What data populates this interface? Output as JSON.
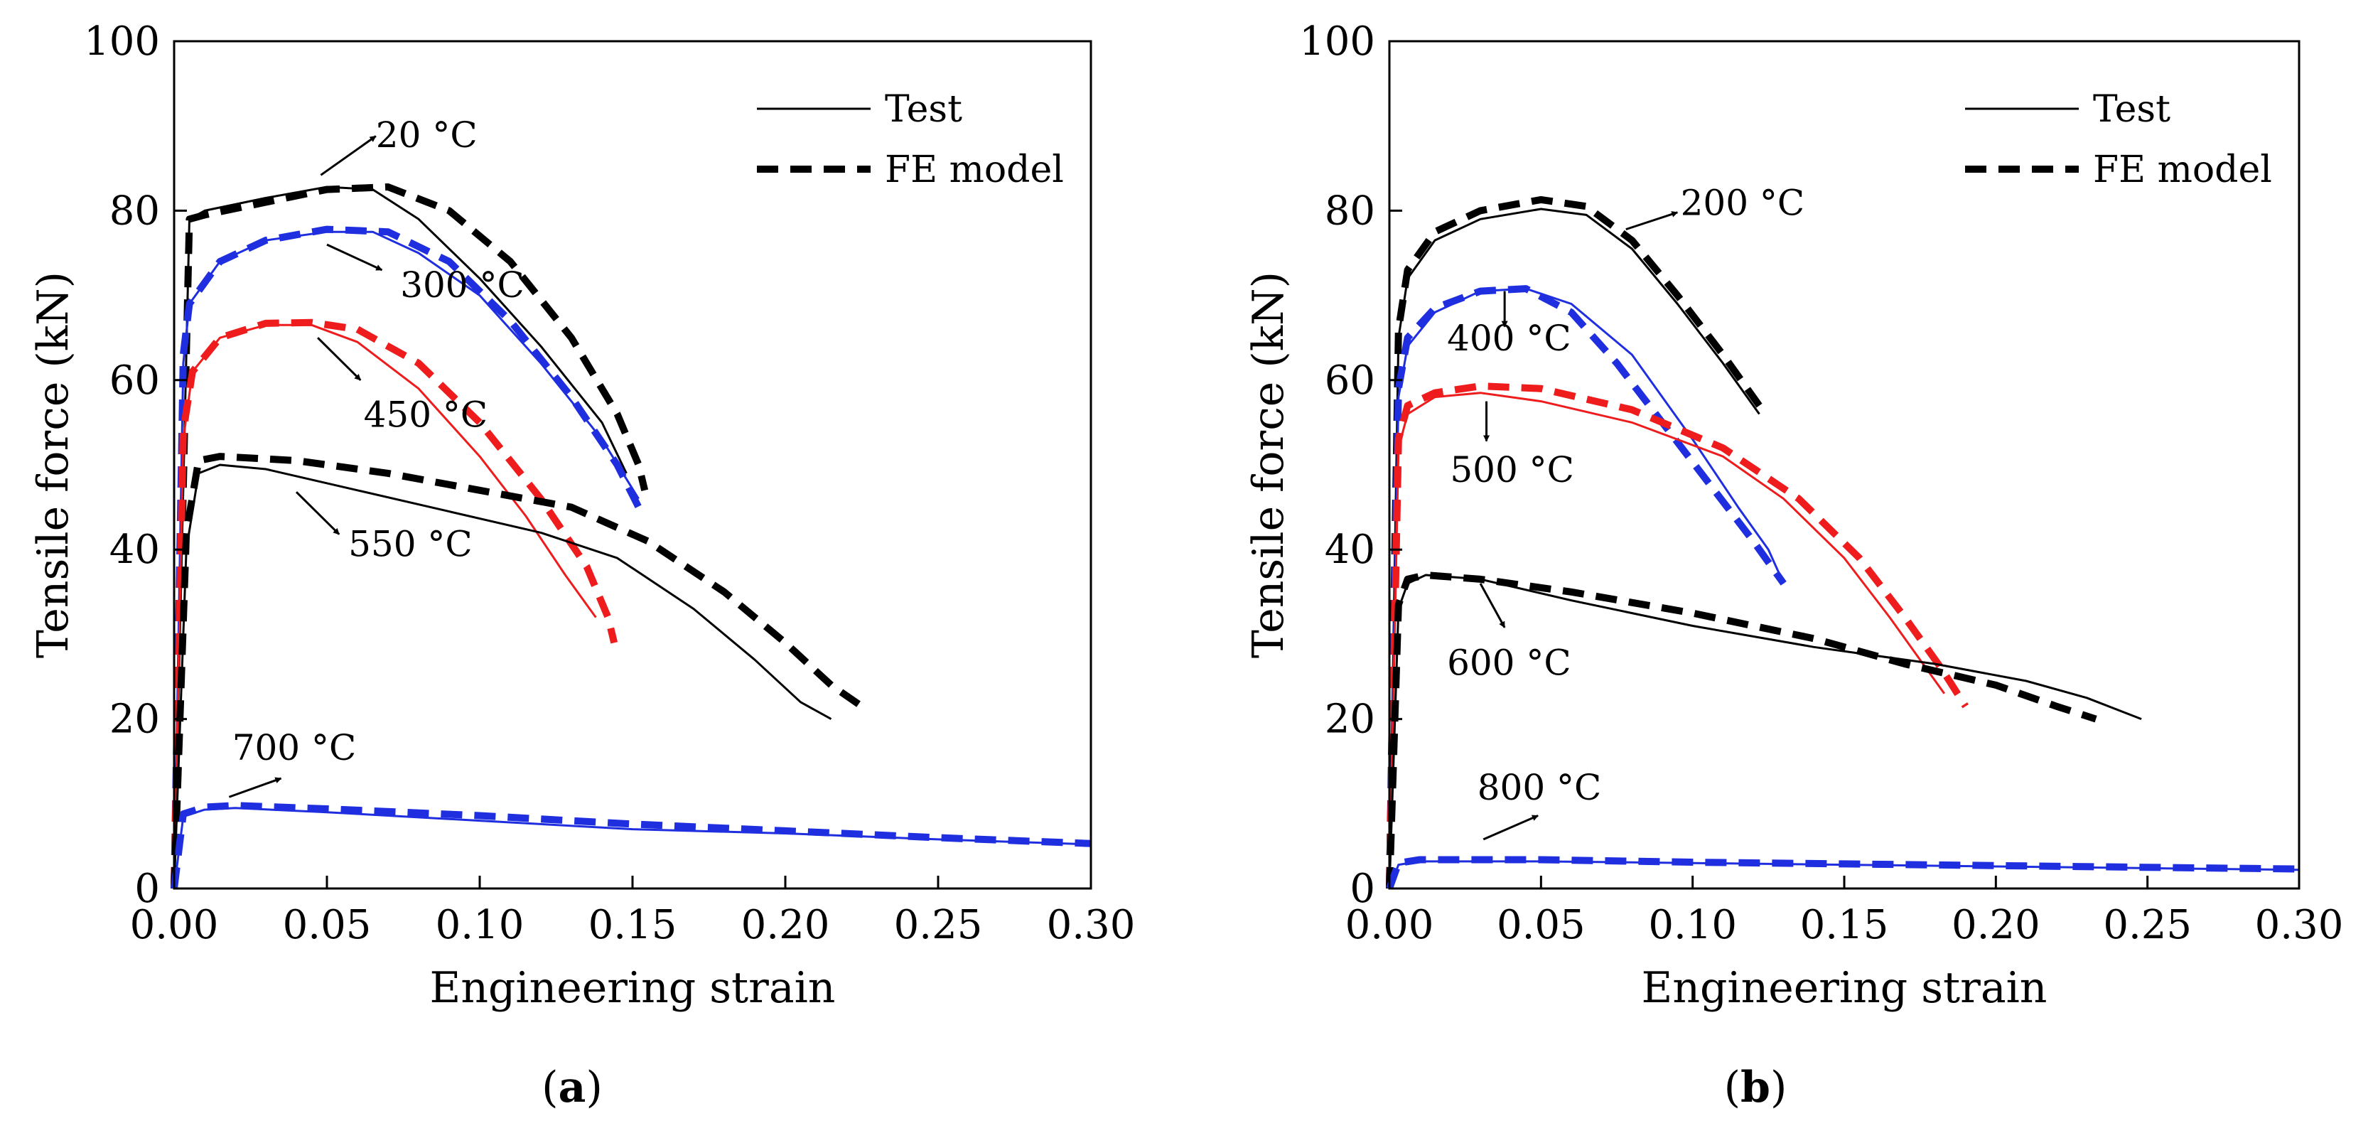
{
  "chart_data": [
    {
      "panel": "a",
      "type": "line",
      "caption": "(a)",
      "caption_letter": "a",
      "xlabel": "Engineering strain",
      "ylabel": "Tensile force (kN)",
      "xlim": [
        0,
        0.3
      ],
      "ylim": [
        0,
        100
      ],
      "xticks": [
        "0.00",
        "0.05",
        "0.10",
        "0.15",
        "0.20",
        "0.25",
        "0.30"
      ],
      "yticks": [
        "0",
        "20",
        "40",
        "60",
        "80",
        "100"
      ],
      "legend": {
        "position": "top-right",
        "test_label": "Test",
        "fe_label": "FE model"
      },
      "colors": {
        "black": "#000000",
        "blue": "#1f2fe0",
        "red": "#ee1c1c"
      },
      "series": [
        {
          "name": "20 °C Test",
          "kind": "test",
          "color": "black",
          "x": [
            0,
            0.005,
            0.01,
            0.03,
            0.05,
            0.065,
            0.08,
            0.1,
            0.12,
            0.14,
            0.148
          ],
          "y": [
            0,
            79,
            80,
            81.5,
            82.8,
            82.5,
            79,
            72,
            64,
            55,
            49
          ]
        },
        {
          "name": "20 °C FE model",
          "kind": "fe",
          "color": "black",
          "x": [
            0,
            0.005,
            0.01,
            0.03,
            0.05,
            0.07,
            0.09,
            0.11,
            0.13,
            0.145,
            0.152,
            0.154
          ],
          "y": [
            0,
            79,
            79.5,
            81,
            82.5,
            82.8,
            80,
            74,
            65,
            56,
            50,
            47
          ]
        },
        {
          "name": "300 °C Test",
          "kind": "test",
          "color": "blue",
          "x": [
            0,
            0.003,
            0.005,
            0.015,
            0.03,
            0.05,
            0.065,
            0.08,
            0.1,
            0.12,
            0.14,
            0.152
          ],
          "y": [
            0,
            62,
            69,
            74,
            76.5,
            77.5,
            77.5,
            75,
            70,
            62,
            53,
            46
          ]
        },
        {
          "name": "300 °C FE model",
          "kind": "fe",
          "color": "blue",
          "x": [
            0,
            0.003,
            0.005,
            0.015,
            0.03,
            0.05,
            0.07,
            0.09,
            0.11,
            0.13,
            0.145,
            0.152
          ],
          "y": [
            0,
            63,
            69,
            74,
            76.5,
            77.8,
            77.5,
            74,
            67,
            58,
            50,
            45
          ]
        },
        {
          "name": "450 °C Test",
          "kind": "test",
          "color": "red",
          "x": [
            0,
            0.003,
            0.006,
            0.015,
            0.03,
            0.045,
            0.06,
            0.08,
            0.1,
            0.115,
            0.128,
            0.138
          ],
          "y": [
            0,
            53,
            61,
            65,
            66.5,
            66.5,
            64.5,
            59,
            51,
            44,
            37,
            32
          ]
        },
        {
          "name": "450 °C FE model",
          "kind": "fe",
          "color": "red",
          "x": [
            0,
            0.003,
            0.006,
            0.015,
            0.03,
            0.045,
            0.06,
            0.08,
            0.1,
            0.12,
            0.135,
            0.142,
            0.144
          ],
          "y": [
            0,
            54,
            61,
            65,
            66.7,
            66.8,
            66,
            62,
            55,
            46,
            38,
            32,
            29
          ]
        },
        {
          "name": "550 °C Test",
          "kind": "test",
          "color": "black",
          "x": [
            0,
            0.004,
            0.008,
            0.015,
            0.03,
            0.06,
            0.09,
            0.12,
            0.145,
            0.17,
            0.19,
            0.205,
            0.215
          ],
          "y": [
            0,
            40,
            49,
            50,
            49.5,
            47,
            44.5,
            42,
            39,
            33,
            27,
            22,
            20
          ]
        },
        {
          "name": "550 °C FE model",
          "kind": "fe",
          "color": "black",
          "x": [
            0,
            0.004,
            0.008,
            0.015,
            0.04,
            0.07,
            0.1,
            0.13,
            0.155,
            0.18,
            0.2,
            0.215,
            0.227
          ],
          "y": [
            0,
            42,
            50.5,
            51,
            50.5,
            49,
            47,
            45,
            41,
            35,
            29,
            24,
            21
          ]
        },
        {
          "name": "700 °C Test",
          "kind": "test",
          "color": "blue",
          "x": [
            0,
            0.003,
            0.01,
            0.02,
            0.05,
            0.1,
            0.15,
            0.2,
            0.25,
            0.3
          ],
          "y": [
            0,
            8.5,
            9.3,
            9.5,
            9,
            8,
            7,
            6.5,
            5.8,
            5.2
          ]
        },
        {
          "name": "700 °C FE model",
          "kind": "fe",
          "color": "blue",
          "x": [
            0,
            0.003,
            0.01,
            0.02,
            0.05,
            0.1,
            0.15,
            0.2,
            0.25,
            0.3
          ],
          "y": [
            0,
            8.8,
            9.6,
            9.8,
            9.4,
            8.6,
            7.6,
            6.8,
            6,
            5.3
          ]
        }
      ],
      "annotations": [
        {
          "text": "20 °C",
          "label_x": 0.066,
          "label_y": 87.5,
          "arrow_from": [
            0.048,
            84.2
          ],
          "arrow_to": [
            0.066,
            88.8
          ]
        },
        {
          "text": "300 °C",
          "label_x": 0.074,
          "label_y": 69.8,
          "arrow_from": [
            0.05,
            76.0
          ],
          "arrow_to": [
            0.068,
            73.0
          ]
        },
        {
          "text": "450 °C",
          "label_x": 0.062,
          "label_y": 54.5,
          "arrow_from": [
            0.047,
            65.0
          ],
          "arrow_to": [
            0.061,
            60.0
          ]
        },
        {
          "text": "550 °C",
          "label_x": 0.057,
          "label_y": 39.2,
          "arrow_from": [
            0.04,
            46.8
          ],
          "arrow_to": [
            0.054,
            41.8
          ]
        },
        {
          "text": "700 °C",
          "label_x": 0.019,
          "label_y": 15.2,
          "arrow_from": [
            0.018,
            10.8
          ],
          "arrow_to": [
            0.035,
            13.0
          ]
        }
      ]
    },
    {
      "panel": "b",
      "type": "line",
      "caption": "(b)",
      "caption_letter": "b",
      "xlabel": "Engineering strain",
      "ylabel": "Tensile force (kN)",
      "xlim": [
        0,
        0.3
      ],
      "ylim": [
        0,
        100
      ],
      "xticks": [
        "0.00",
        "0.05",
        "0.10",
        "0.15",
        "0.20",
        "0.25",
        "0.30"
      ],
      "yticks": [
        "0",
        "20",
        "40",
        "60",
        "80",
        "100"
      ],
      "legend": {
        "position": "top-right",
        "test_label": "Test",
        "fe_label": "FE model"
      },
      "colors": {
        "black": "#000000",
        "blue": "#1f2fe0",
        "red": "#ee1c1c"
      },
      "series": [
        {
          "name": "200 °C Test",
          "kind": "test",
          "color": "black",
          "x": [
            0,
            0.003,
            0.006,
            0.015,
            0.03,
            0.05,
            0.065,
            0.08,
            0.095,
            0.11,
            0.122
          ],
          "y": [
            0,
            65,
            72,
            76.5,
            79,
            80.2,
            79.5,
            75.5,
            69,
            62,
            56
          ]
        },
        {
          "name": "200 °C FE model",
          "kind": "fe",
          "color": "black",
          "x": [
            0,
            0.003,
            0.006,
            0.015,
            0.03,
            0.05,
            0.065,
            0.08,
            0.095,
            0.11,
            0.122
          ],
          "y": [
            0,
            66,
            73,
            77.5,
            80,
            81.3,
            80.5,
            76.5,
            70,
            63,
            57
          ]
        },
        {
          "name": "400 °C Test",
          "kind": "test",
          "color": "blue",
          "x": [
            0,
            0.003,
            0.006,
            0.015,
            0.03,
            0.045,
            0.06,
            0.08,
            0.1,
            0.115,
            0.125,
            0.13
          ],
          "y": [
            0,
            58,
            64,
            68,
            70.5,
            70.8,
            69,
            63,
            53,
            45,
            40,
            36
          ]
        },
        {
          "name": "400 °C FE model",
          "kind": "fe",
          "color": "blue",
          "x": [
            0,
            0.003,
            0.006,
            0.015,
            0.03,
            0.045,
            0.06,
            0.075,
            0.09,
            0.105,
            0.12,
            0.13
          ],
          "y": [
            0,
            59,
            65,
            68.5,
            70.5,
            70.8,
            68,
            62,
            55,
            48,
            41,
            36
          ]
        },
        {
          "name": "500 °C Test",
          "kind": "test",
          "color": "red",
          "x": [
            0,
            0.003,
            0.006,
            0.015,
            0.03,
            0.05,
            0.08,
            0.11,
            0.13,
            0.15,
            0.165,
            0.175,
            0.183
          ],
          "y": [
            0,
            52,
            56,
            58,
            58.5,
            57.5,
            55,
            51,
            46,
            39,
            32,
            27,
            23
          ]
        },
        {
          "name": "500 °C FE model",
          "kind": "fe",
          "color": "red",
          "x": [
            0,
            0.003,
            0.006,
            0.015,
            0.03,
            0.05,
            0.08,
            0.11,
            0.135,
            0.155,
            0.17,
            0.182,
            0.19
          ],
          "y": [
            0,
            53,
            57,
            58.5,
            59.3,
            59,
            56.5,
            52,
            46,
            39,
            32,
            26,
            21.5
          ]
        },
        {
          "name": "600 °C Test",
          "kind": "test",
          "color": "black",
          "x": [
            0,
            0.003,
            0.006,
            0.012,
            0.03,
            0.06,
            0.1,
            0.14,
            0.18,
            0.21,
            0.23,
            0.248
          ],
          "y": [
            0,
            33,
            36,
            37,
            36.5,
            34,
            31,
            28.5,
            26.5,
            24.5,
            22.5,
            20
          ]
        },
        {
          "name": "600 °C FE model",
          "kind": "fe",
          "color": "black",
          "x": [
            0,
            0.003,
            0.006,
            0.012,
            0.03,
            0.06,
            0.1,
            0.14,
            0.17,
            0.2,
            0.22,
            0.233
          ],
          "y": [
            0,
            33.5,
            36.5,
            37,
            36.5,
            35,
            32.5,
            29.5,
            26.5,
            24,
            21.5,
            20
          ]
        },
        {
          "name": "800 °C Test",
          "kind": "test",
          "color": "blue",
          "x": [
            0,
            0.003,
            0.01,
            0.05,
            0.1,
            0.15,
            0.2,
            0.25,
            0.3
          ],
          "y": [
            0,
            2.8,
            3.2,
            3.2,
            3,
            2.8,
            2.6,
            2.4,
            2.2
          ]
        },
        {
          "name": "800 °C FE model",
          "kind": "fe",
          "color": "blue",
          "x": [
            0,
            0.003,
            0.01,
            0.05,
            0.1,
            0.15,
            0.2,
            0.25,
            0.3
          ],
          "y": [
            0,
            3,
            3.4,
            3.4,
            3.1,
            2.9,
            2.7,
            2.5,
            2.3
          ]
        }
      ],
      "annotations": [
        {
          "text": "200 °C",
          "label_x": 0.096,
          "label_y": 79.5,
          "arrow_from": [
            0.078,
            77.8
          ],
          "arrow_to": [
            0.095,
            79.8
          ]
        },
        {
          "text": "400 °C",
          "label_x": 0.019,
          "label_y": 63.5,
          "arrow_from": [
            0.038,
            70.5
          ],
          "arrow_to": [
            0.038,
            66.3
          ]
        },
        {
          "text": "500 °C",
          "label_x": 0.02,
          "label_y": 48.0,
          "arrow_from": [
            0.032,
            57.5
          ],
          "arrow_to": [
            0.032,
            52.8
          ]
        },
        {
          "text": "600 °C",
          "label_x": 0.019,
          "label_y": 25.2,
          "arrow_from": [
            0.03,
            36.0
          ],
          "arrow_to": [
            0.038,
            30.8
          ]
        },
        {
          "text": "800 °C",
          "label_x": 0.029,
          "label_y": 10.5,
          "arrow_from": [
            0.031,
            5.8
          ],
          "arrow_to": [
            0.049,
            8.6
          ]
        }
      ]
    }
  ]
}
